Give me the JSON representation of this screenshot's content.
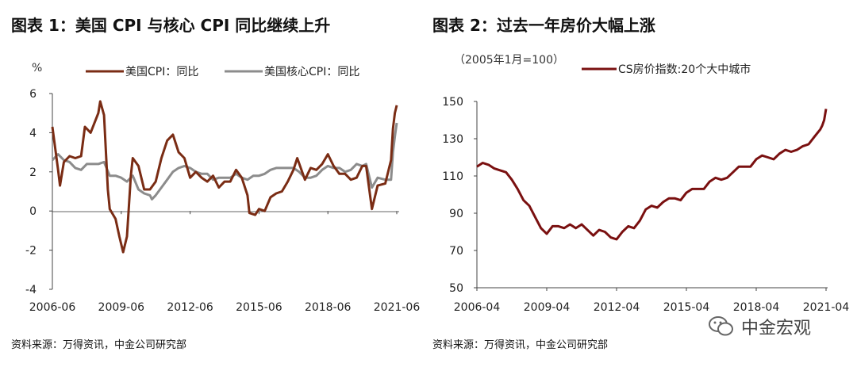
{
  "charts": [
    {
      "title": "图表 1：美国 CPI 与核心 CPI 同比继续上升",
      "unit_label": "%",
      "source": "资料来源：万得资讯，中金公司研究部"
    },
    {
      "title": "图表 2：过去一年房价大幅上涨",
      "unit_label": "（2005年1月=100）",
      "source": "资料来源：万得资讯，中金公司研究部"
    }
  ],
  "watermark": "中金宏观",
  "chart_data": [
    {
      "type": "line",
      "title": "图表 1：美国 CPI 与核心 CPI 同比继续上升",
      "ylabel": "%",
      "ylim": [
        -4,
        6
      ],
      "yticks": [
        -4,
        -2,
        0,
        2,
        4,
        6
      ],
      "xticks": [
        "2006-06",
        "2009-06",
        "2012-06",
        "2015-06",
        "2018-06",
        "2021-06"
      ],
      "legend_position": "top",
      "grid": false,
      "series": [
        {
          "name": "美国CPI：同比",
          "color": "#7a2c14",
          "points": [
            [
              "2006-06",
              4.3
            ],
            [
              "2006-09",
              2.1
            ],
            [
              "2006-10",
              1.3
            ],
            [
              "2006-12",
              2.5
            ],
            [
              "2007-03",
              2.8
            ],
            [
              "2007-06",
              2.7
            ],
            [
              "2007-09",
              2.8
            ],
            [
              "2007-11",
              4.3
            ],
            [
              "2008-02",
              4.0
            ],
            [
              "2008-06",
              5.0
            ],
            [
              "2008-07",
              5.6
            ],
            [
              "2008-09",
              4.9
            ],
            [
              "2008-11",
              1.1
            ],
            [
              "2008-12",
              0.1
            ],
            [
              "2009-03",
              -0.4
            ],
            [
              "2009-05",
              -1.3
            ],
            [
              "2009-07",
              -2.1
            ],
            [
              "2009-09",
              -1.3
            ],
            [
              "2009-11",
              1.8
            ],
            [
              "2009-12",
              2.7
            ],
            [
              "2010-03",
              2.3
            ],
            [
              "2010-06",
              1.1
            ],
            [
              "2010-09",
              1.1
            ],
            [
              "2010-12",
              1.5
            ],
            [
              "2011-03",
              2.7
            ],
            [
              "2011-06",
              3.6
            ],
            [
              "2011-09",
              3.9
            ],
            [
              "2011-12",
              3.0
            ],
            [
              "2012-03",
              2.7
            ],
            [
              "2012-06",
              1.7
            ],
            [
              "2012-09",
              2.0
            ],
            [
              "2012-12",
              1.7
            ],
            [
              "2013-03",
              1.5
            ],
            [
              "2013-06",
              1.8
            ],
            [
              "2013-09",
              1.2
            ],
            [
              "2013-12",
              1.5
            ],
            [
              "2014-03",
              1.5
            ],
            [
              "2014-06",
              2.1
            ],
            [
              "2014-09",
              1.7
            ],
            [
              "2014-12",
              0.8
            ],
            [
              "2015-01",
              -0.1
            ],
            [
              "2015-04",
              -0.2
            ],
            [
              "2015-06",
              0.1
            ],
            [
              "2015-09",
              0.0
            ],
            [
              "2015-12",
              0.7
            ],
            [
              "2016-03",
              0.9
            ],
            [
              "2016-06",
              1.0
            ],
            [
              "2016-09",
              1.5
            ],
            [
              "2016-12",
              2.1
            ],
            [
              "2017-02",
              2.7
            ],
            [
              "2017-06",
              1.6
            ],
            [
              "2017-09",
              2.2
            ],
            [
              "2017-12",
              2.1
            ],
            [
              "2018-03",
              2.4
            ],
            [
              "2018-06",
              2.9
            ],
            [
              "2018-09",
              2.3
            ],
            [
              "2018-12",
              1.9
            ],
            [
              "2019-03",
              1.9
            ],
            [
              "2019-06",
              1.6
            ],
            [
              "2019-09",
              1.7
            ],
            [
              "2019-12",
              2.3
            ],
            [
              "2020-02",
              2.3
            ],
            [
              "2020-05",
              0.1
            ],
            [
              "2020-08",
              1.3
            ],
            [
              "2020-12",
              1.4
            ],
            [
              "2021-03",
              2.6
            ],
            [
              "2021-04",
              4.2
            ],
            [
              "2021-05",
              5.0
            ],
            [
              "2021-06",
              5.4
            ]
          ]
        },
        {
          "name": "美国核心CPI：同比",
          "color": "#8c8c8c",
          "points": [
            [
              "2006-06",
              2.6
            ],
            [
              "2006-09",
              2.9
            ],
            [
              "2006-12",
              2.6
            ],
            [
              "2007-03",
              2.5
            ],
            [
              "2007-06",
              2.2
            ],
            [
              "2007-09",
              2.1
            ],
            [
              "2007-12",
              2.4
            ],
            [
              "2008-03",
              2.4
            ],
            [
              "2008-06",
              2.4
            ],
            [
              "2008-09",
              2.5
            ],
            [
              "2008-12",
              1.8
            ],
            [
              "2009-03",
              1.8
            ],
            [
              "2009-06",
              1.7
            ],
            [
              "2009-09",
              1.5
            ],
            [
              "2009-12",
              1.8
            ],
            [
              "2010-03",
              1.1
            ],
            [
              "2010-06",
              0.9
            ],
            [
              "2010-09",
              0.8
            ],
            [
              "2010-10",
              0.6
            ],
            [
              "2010-12",
              0.8
            ],
            [
              "2011-03",
              1.2
            ],
            [
              "2011-06",
              1.6
            ],
            [
              "2011-09",
              2.0
            ],
            [
              "2011-12",
              2.2
            ],
            [
              "2012-03",
              2.3
            ],
            [
              "2012-06",
              2.2
            ],
            [
              "2012-09",
              2.0
            ],
            [
              "2012-12",
              1.9
            ],
            [
              "2013-03",
              1.9
            ],
            [
              "2013-06",
              1.6
            ],
            [
              "2013-09",
              1.7
            ],
            [
              "2013-12",
              1.7
            ],
            [
              "2014-03",
              1.7
            ],
            [
              "2014-06",
              1.9
            ],
            [
              "2014-09",
              1.7
            ],
            [
              "2014-12",
              1.6
            ],
            [
              "2015-03",
              1.8
            ],
            [
              "2015-06",
              1.8
            ],
            [
              "2015-09",
              1.9
            ],
            [
              "2015-12",
              2.1
            ],
            [
              "2016-03",
              2.2
            ],
            [
              "2016-06",
              2.2
            ],
            [
              "2016-09",
              2.2
            ],
            [
              "2016-12",
              2.2
            ],
            [
              "2017-03",
              2.0
            ],
            [
              "2017-06",
              1.7
            ],
            [
              "2017-09",
              1.7
            ],
            [
              "2017-12",
              1.8
            ],
            [
              "2018-03",
              2.1
            ],
            [
              "2018-06",
              2.3
            ],
            [
              "2018-09",
              2.2
            ],
            [
              "2018-12",
              2.2
            ],
            [
              "2019-03",
              2.0
            ],
            [
              "2019-06",
              2.1
            ],
            [
              "2019-09",
              2.4
            ],
            [
              "2019-12",
              2.3
            ],
            [
              "2020-02",
              2.4
            ],
            [
              "2020-05",
              1.2
            ],
            [
              "2020-08",
              1.7
            ],
            [
              "2020-12",
              1.6
            ],
            [
              "2021-03",
              1.6
            ],
            [
              "2021-04",
              3.0
            ],
            [
              "2021-05",
              3.8
            ],
            [
              "2021-06",
              4.5
            ]
          ]
        }
      ]
    },
    {
      "type": "line",
      "title": "图表 2：过去一年房价大幅上涨",
      "ylabel": "（2005年1月=100）",
      "ylim": [
        50,
        150
      ],
      "yticks": [
        50,
        70,
        90,
        110,
        130,
        150
      ],
      "xticks": [
        "2006-04",
        "2009-04",
        "2012-04",
        "2015-04",
        "2018-04",
        "2021-04"
      ],
      "legend_position": "top",
      "grid": false,
      "series": [
        {
          "name": "CS房价指数:20个大中城市",
          "color": "#7a1010",
          "points": [
            [
              "2006-04",
              115
            ],
            [
              "2006-07",
              117
            ],
            [
              "2006-10",
              116
            ],
            [
              "2007-01",
              114
            ],
            [
              "2007-04",
              113
            ],
            [
              "2007-07",
              112
            ],
            [
              "2007-10",
              108
            ],
            [
              "2008-01",
              103
            ],
            [
              "2008-04",
              97
            ],
            [
              "2008-07",
              94
            ],
            [
              "2008-10",
              88
            ],
            [
              "2009-01",
              82
            ],
            [
              "2009-04",
              79
            ],
            [
              "2009-07",
              83
            ],
            [
              "2009-10",
              83
            ],
            [
              "2010-01",
              82
            ],
            [
              "2010-04",
              84
            ],
            [
              "2010-07",
              82
            ],
            [
              "2010-10",
              84
            ],
            [
              "2011-01",
              81
            ],
            [
              "2011-04",
              78
            ],
            [
              "2011-07",
              81
            ],
            [
              "2011-10",
              80
            ],
            [
              "2012-01",
              77
            ],
            [
              "2012-04",
              76
            ],
            [
              "2012-07",
              80
            ],
            [
              "2012-10",
              83
            ],
            [
              "2013-01",
              82
            ],
            [
              "2013-04",
              86
            ],
            [
              "2013-07",
              92
            ],
            [
              "2013-10",
              94
            ],
            [
              "2014-01",
              93
            ],
            [
              "2014-04",
              96
            ],
            [
              "2014-07",
              98
            ],
            [
              "2014-10",
              98
            ],
            [
              "2015-01",
              97
            ],
            [
              "2015-04",
              101
            ],
            [
              "2015-07",
              103
            ],
            [
              "2015-10",
              103
            ],
            [
              "2016-01",
              103
            ],
            [
              "2016-04",
              107
            ],
            [
              "2016-07",
              109
            ],
            [
              "2016-10",
              108
            ],
            [
              "2017-01",
              109
            ],
            [
              "2017-04",
              112
            ],
            [
              "2017-07",
              115
            ],
            [
              "2017-10",
              115
            ],
            [
              "2018-01",
              115
            ],
            [
              "2018-04",
              119
            ],
            [
              "2018-07",
              121
            ],
            [
              "2018-10",
              120
            ],
            [
              "2019-01",
              119
            ],
            [
              "2019-04",
              122
            ],
            [
              "2019-07",
              124
            ],
            [
              "2019-10",
              123
            ],
            [
              "2020-01",
              124
            ],
            [
              "2020-04",
              126
            ],
            [
              "2020-07",
              127
            ],
            [
              "2020-10",
              131
            ],
            [
              "2021-01",
              135
            ],
            [
              "2021-02",
              137
            ],
            [
              "2021-03",
              140
            ],
            [
              "2021-04",
              146
            ]
          ]
        }
      ]
    }
  ]
}
